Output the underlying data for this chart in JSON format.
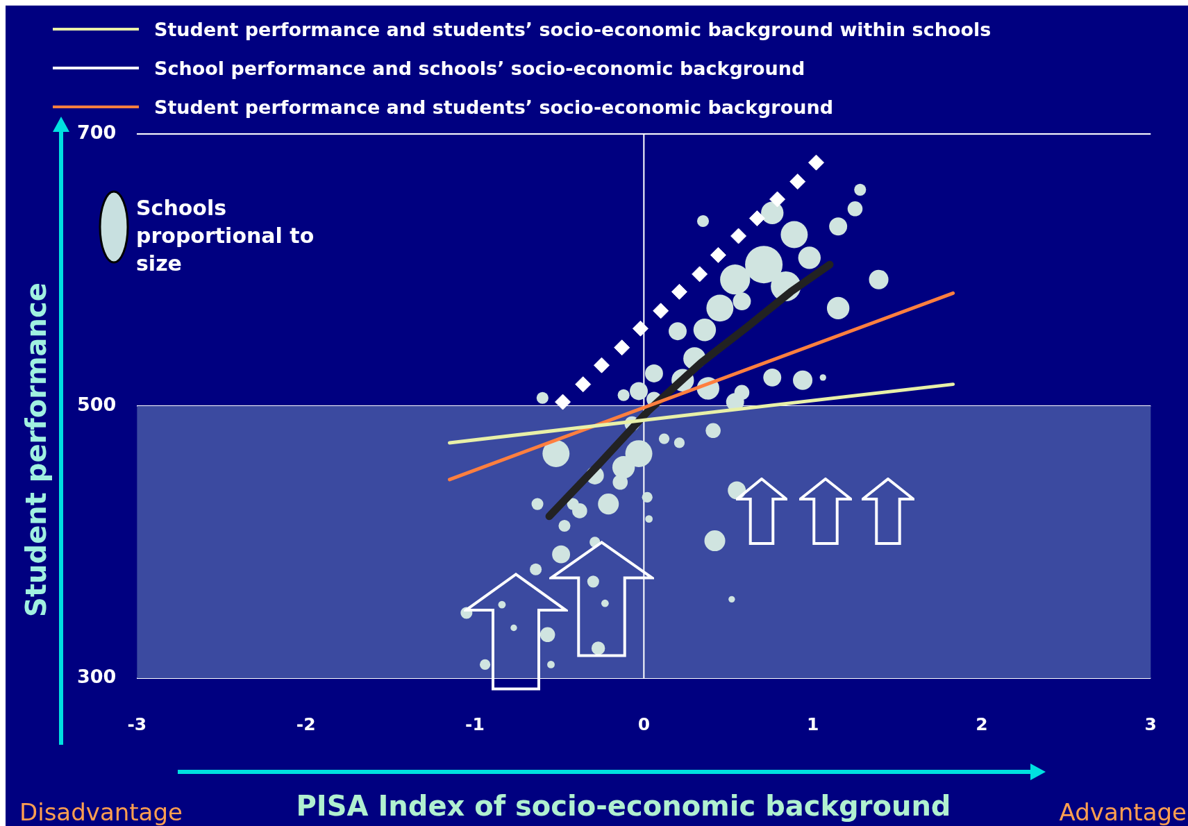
{
  "chart_data": {
    "type": "scatter",
    "xlabel": "PISA Index of socio-economic background",
    "ylabel": "Student performance",
    "xlim": [
      -3,
      3
    ],
    "xticks": [
      -3,
      -2,
      -1,
      0,
      1,
      2,
      3
    ],
    "ylim": [
      300,
      700
    ],
    "yticks": [
      300,
      500,
      700
    ],
    "grid": "y",
    "legend": "top left",
    "annotations": [
      "Schools proportional to size",
      "Disadvantage",
      "Advantage"
    ],
    "bands": [
      {
        "axis": "y",
        "from": 300,
        "to": 500,
        "color": "#3b4aa0"
      }
    ],
    "ref_lines": [
      {
        "axis": "x",
        "value": 0,
        "color": "#ffffff"
      }
    ],
    "series": [
      {
        "type": "bubble",
        "color": "#d0e4e0",
        "x": [
          -0.6,
          -0.52,
          -0.63,
          -0.49,
          -0.64,
          -1.05,
          -0.77,
          -0.84,
          -0.57,
          -0.94,
          -0.55,
          -0.3,
          -0.27,
          -0.23,
          0.42,
          0.52,
          0.55,
          0.41,
          0.2,
          0.35,
          1.28,
          1.25,
          1.15,
          1.39,
          1.15,
          0.94,
          1.06,
          0.76,
          0.58,
          0.76,
          0.89,
          0.71,
          0.54,
          0.84,
          0.45,
          0.36,
          0.3,
          0.23,
          0.06,
          -0.03,
          -0.12,
          0.06,
          0.38,
          0.54,
          0.58,
          0.98,
          -0.03,
          -0.12,
          -0.29,
          -0.21,
          -0.38,
          -0.47,
          -0.07,
          0.12,
          0.21,
          0.02,
          0.03,
          -0.14,
          -0.29,
          -0.42
        ],
        "values": [
          506,
          465,
          428,
          391,
          380,
          348,
          337,
          354,
          332,
          310,
          310,
          371,
          322,
          355,
          401,
          358,
          438,
          482,
          555,
          636,
          659,
          645,
          632,
          593,
          572,
          519,
          521,
          521,
          510,
          642,
          626,
          604,
          593,
          588,
          572,
          556,
          535,
          519,
          524,
          511,
          508,
          505,
          513,
          503,
          577,
          609,
          465,
          455,
          449,
          428,
          423,
          412,
          487,
          476,
          473,
          433,
          417,
          444,
          400,
          428
        ],
        "sizes": [
          0.1,
          0.52,
          0.1,
          0.23,
          0.1,
          0.1,
          0.03,
          0.04,
          0.16,
          0.08,
          0.04,
          0.1,
          0.13,
          0.04,
          0.31,
          0.03,
          0.23,
          0.16,
          0.23,
          0.1,
          0.1,
          0.16,
          0.23,
          0.27,
          0.36,
          0.27,
          0.03,
          0.23,
          0.16,
          0.36,
          0.52,
          1,
          0.64,
          0.64,
          0.52,
          0.36,
          0.36,
          0.36,
          0.23,
          0.23,
          0.1,
          0.16,
          0.36,
          0.23,
          0.23,
          0.36,
          0.52,
          0.36,
          0.23,
          0.31,
          0.16,
          0.1,
          0.16,
          0.08,
          0.08,
          0.08,
          0.04,
          0.16,
          0.08,
          0.1
        ]
      },
      {
        "name": "Student performance and students’ socio-economic background within schools",
        "type": "line",
        "color": "#e8f0a8",
        "x": [
          -1.15,
          1.83
        ],
        "values": [
          473,
          516
        ]
      },
      {
        "name": "School performance and schools’ socio-economic background",
        "type": "scatter",
        "marker": "diamond",
        "color": "#ffffff",
        "x": [
          -0.48,
          -0.36,
          -0.25,
          -0.13,
          -0.02,
          0.1,
          0.21,
          0.33,
          0.44,
          0.56,
          0.67,
          0.79,
          0.91,
          1.02
        ],
        "values": [
          503,
          516,
          530,
          543,
          557,
          570,
          584,
          597,
          611,
          625,
          638,
          652,
          665,
          679
        ]
      },
      {
        "name": "Student performance and students’ socio-economic background",
        "type": "line",
        "color": "#ff7f3f",
        "x": [
          -1.15,
          1.83
        ],
        "values": [
          446,
          583
        ]
      },
      {
        "type": "line",
        "color": "#222222",
        "x": [
          -0.56,
          -0.26,
          0.03,
          0.34,
          0.61,
          0.87,
          1.1
        ],
        "values": [
          419,
          458,
          497,
          532,
          558,
          584,
          604
        ]
      }
    ]
  }
}
